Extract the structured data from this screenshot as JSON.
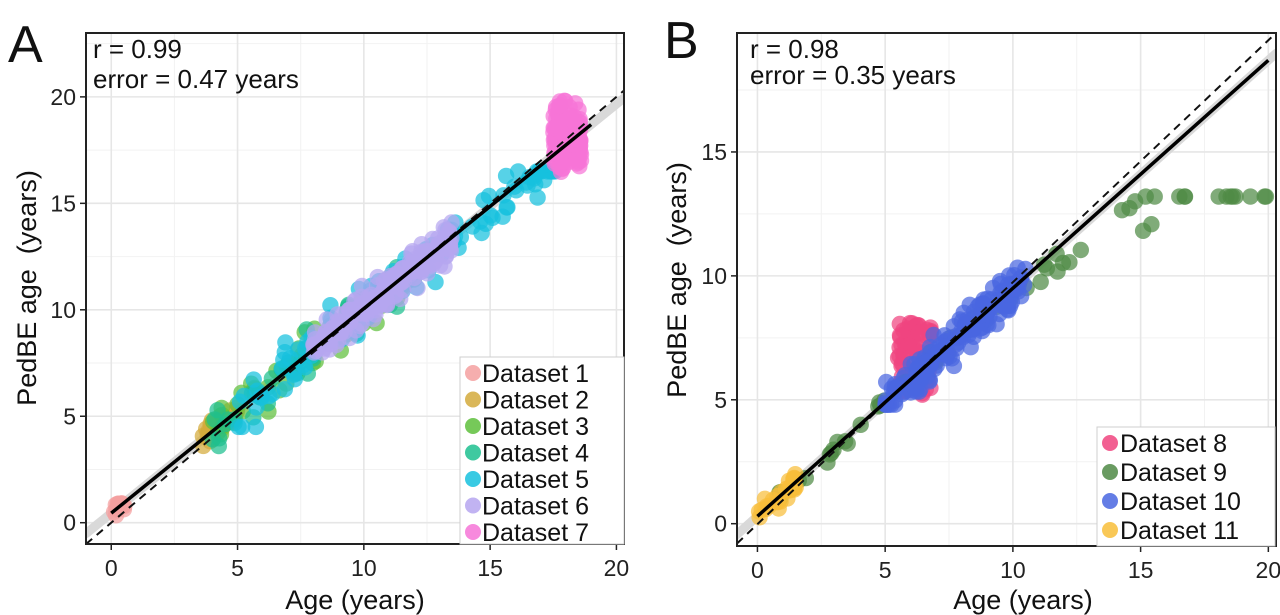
{
  "chart_data": [
    {
      "panel": "A",
      "type": "scatter",
      "xlabel": "Age (years)",
      "ylabel": "PedBE age  (years)",
      "xlim": [
        -1,
        20.3
      ],
      "ylim": [
        -1.0,
        23.0
      ],
      "xticks": [
        0,
        5,
        10,
        15,
        20
      ],
      "yticks": [
        0,
        5,
        10,
        15,
        20
      ],
      "grid": true,
      "legend_position": "bottom-right",
      "annotations": [
        "r = 0.99",
        "error = 0.47 years"
      ],
      "identity_line": [
        [
          -1,
          -1
        ],
        [
          20.3,
          20.3
        ]
      ],
      "fit_line": [
        [
          0,
          0.45
        ],
        [
          19,
          18.7
        ]
      ],
      "series": [
        {
          "name": "Dataset 1",
          "color": "#F4A0A0",
          "x_range": [
            0.05,
            0.6
          ],
          "y_range": [
            0.1,
            0.9
          ],
          "n": 14
        },
        {
          "name": "Dataset 2",
          "color": "#D4AA3C",
          "x_range": [
            3.5,
            5.0
          ],
          "y_range": [
            3.4,
            5.4
          ],
          "n": 35
        },
        {
          "name": "Dataset 3",
          "color": "#5EBF3C",
          "x_range": [
            4.0,
            12.5
          ],
          "y_range": [
            3.8,
            12.5
          ],
          "n": 60
        },
        {
          "name": "Dataset 4",
          "color": "#1DBF8F",
          "x_range": [
            4.0,
            12.0
          ],
          "y_range": [
            3.6,
            12.0
          ],
          "n": 60
        },
        {
          "name": "Dataset 5",
          "color": "#16C1DE",
          "x_range": [
            5.0,
            17.8
          ],
          "y_range": [
            4.5,
            16.5
          ],
          "n": 110
        },
        {
          "name": "Dataset 6",
          "color": "#B6A6F0",
          "x_range": [
            8.0,
            13.5
          ],
          "y_range": [
            8.0,
            14.5
          ],
          "n": 200
        },
        {
          "name": "Dataset 7",
          "color": "#F674D7",
          "x_range": [
            17.5,
            18.6
          ],
          "y_range": [
            13.3,
            22.3
          ],
          "n": 200
        }
      ]
    },
    {
      "panel": "B",
      "type": "scatter",
      "xlabel": "Age (years)",
      "ylabel": "PedBE age  (years)",
      "xlim": [
        -0.8,
        20.3
      ],
      "ylim": [
        -0.9,
        19.8
      ],
      "xticks": [
        0,
        5,
        10,
        15,
        20
      ],
      "yticks": [
        0,
        5,
        10,
        15
      ],
      "grid": true,
      "legend_position": "bottom-right",
      "annotations": [
        "r = 0.98",
        "error = 0.35 years"
      ],
      "identity_line": [
        [
          -0.8,
          -0.8
        ],
        [
          20.3,
          20.3
        ]
      ],
      "fit_line": [
        [
          0,
          0.3
        ],
        [
          20,
          18.7
        ]
      ],
      "series": [
        {
          "name": "Dataset 8",
          "color": "#F0447F",
          "x_range": [
            5.5,
            6.8
          ],
          "y_range": [
            5.2,
            8.1
          ],
          "n": 80
        },
        {
          "name": "Dataset 9",
          "color": "#4F8A45",
          "x_range": [
            0.5,
            20
          ],
          "y_range": [
            0.5,
            13.2
          ],
          "n": 60
        },
        {
          "name": "Dataset 10",
          "color": "#4966E0",
          "x_range": [
            5.0,
            10.5
          ],
          "y_range": [
            4.8,
            11.3
          ],
          "n": 170
        },
        {
          "name": "Dataset 11",
          "color": "#F8BE3A",
          "x_range": [
            0.0,
            1.5
          ],
          "y_range": [
            0.2,
            2.0
          ],
          "n": 30
        }
      ]
    }
  ]
}
